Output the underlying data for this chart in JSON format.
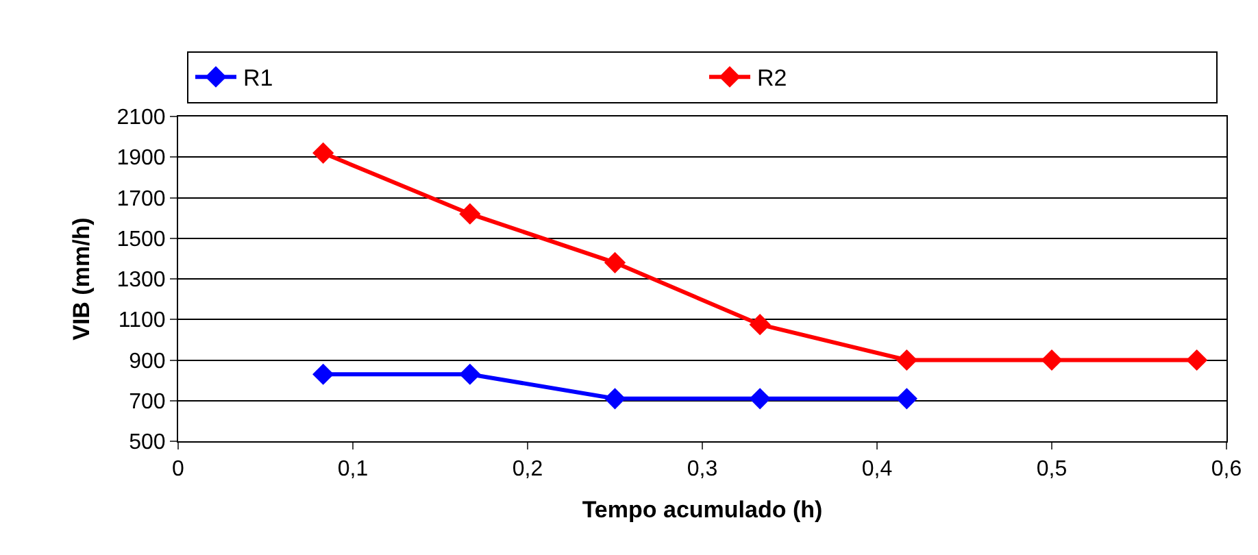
{
  "chart_data": {
    "type": "line",
    "xlabel": "Tempo acumulado (h)",
    "ylabel": "VIB (mm/h)",
    "series": [
      {
        "name": "R1",
        "color": "#0000ff",
        "x": [
          0.083,
          0.167,
          0.25,
          0.333,
          0.417
        ],
        "values": [
          830,
          830,
          710,
          710,
          710
        ]
      },
      {
        "name": "R2",
        "color": "#ff0000",
        "x": [
          0.083,
          0.167,
          0.25,
          0.333,
          0.417,
          0.5,
          0.583
        ],
        "values": [
          1920,
          1620,
          1380,
          1075,
          900,
          900,
          900
        ]
      }
    ],
    "xlim": [
      0,
      0.6
    ],
    "xticks": [
      0,
      {
        "value": 0.1,
        "label": "0,1"
      },
      {
        "value": 0.2,
        "label": "0,2"
      },
      {
        "value": 0.3,
        "label": "0,3"
      },
      {
        "value": 0.4,
        "label": "0,4"
      },
      {
        "value": 0.5,
        "label": "0,5"
      },
      {
        "value": 0.6,
        "label": "0,6"
      }
    ],
    "ylim": [
      500,
      2100
    ],
    "yticks": [
      500,
      700,
      900,
      1100,
      1300,
      1500,
      1700,
      1900,
      2100
    ],
    "grid": "y",
    "legend": "top",
    "marker": "diamond",
    "line_style": "solid"
  }
}
